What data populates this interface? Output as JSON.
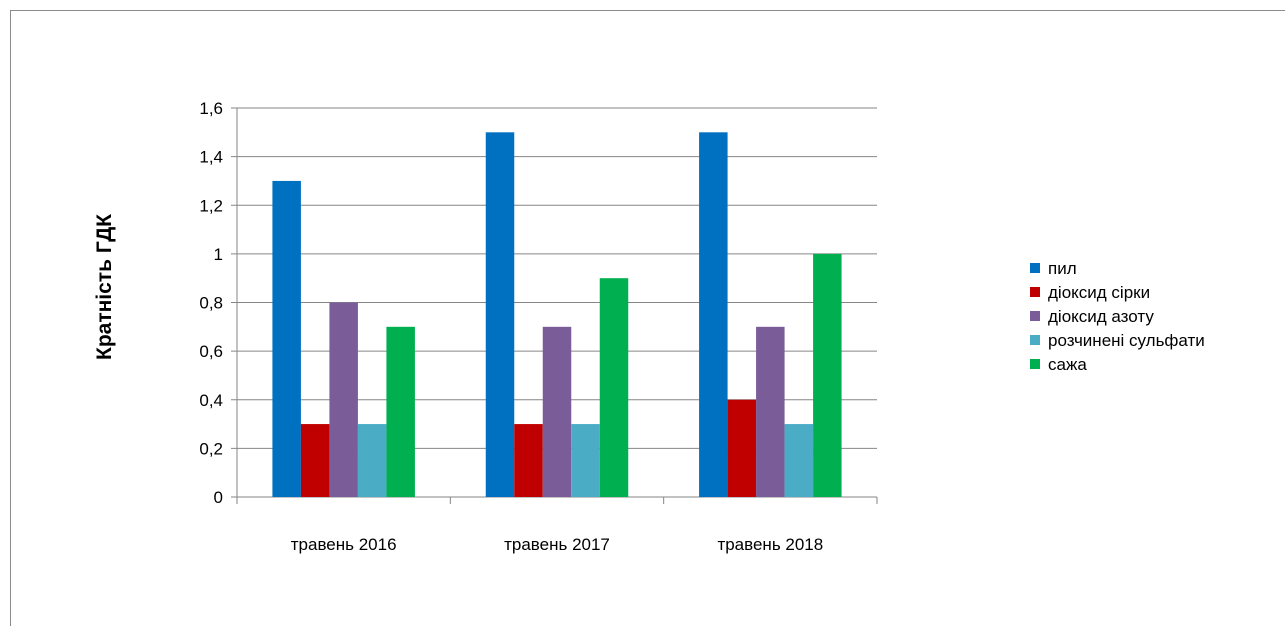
{
  "chart_data": {
    "type": "bar",
    "title": "",
    "xlabel": "",
    "ylabel": "Кратність ГДК",
    "categories": [
      "травень 2016",
      "травень 2017",
      "травень 2018"
    ],
    "series": [
      {
        "name": "пил",
        "values": [
          1.3,
          1.5,
          1.5
        ],
        "color": "#0070C0"
      },
      {
        "name": "діоксид сірки",
        "values": [
          0.3,
          0.3,
          0.4
        ],
        "color": "#C00000"
      },
      {
        "name": "діоксид азоту",
        "values": [
          0.8,
          0.7,
          0.7
        ],
        "color": "#7A5C99"
      },
      {
        "name": "розчинені сульфати",
        "values": [
          0.3,
          0.3,
          0.3
        ],
        "color": "#4BACC6"
      },
      {
        "name": "сажа",
        "values": [
          0.7,
          0.9,
          1.0
        ],
        "color": "#00B050"
      }
    ],
    "ylim": [
      0,
      1.6
    ],
    "yticks": [
      "0",
      "0,2",
      "0,4",
      "0,6",
      "0,8",
      "1",
      "1,2",
      "1,4",
      "1,6"
    ],
    "grid": true,
    "legend_position": "right"
  }
}
